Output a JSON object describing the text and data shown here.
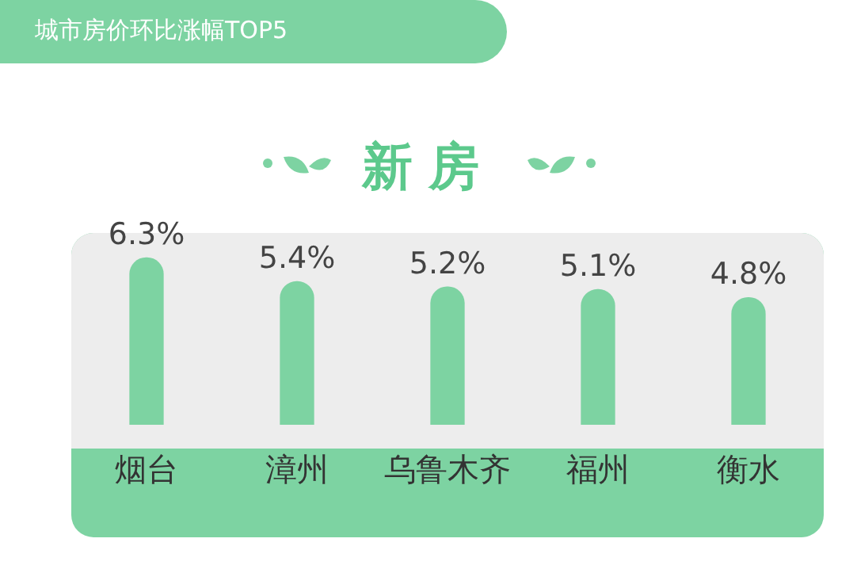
{
  "chart_data": {
    "type": "bar",
    "title": "城市房价环比涨幅TOP5",
    "subtitle": "新房",
    "categories": [
      "烟台",
      "漳州",
      "乌鲁木齐",
      "福州",
      "衡水"
    ],
    "values": [
      6.3,
      5.4,
      5.2,
      5.1,
      4.8
    ],
    "value_labels": [
      "6.3%",
      "5.4%",
      "5.2%",
      "5.1%",
      "4.8%"
    ],
    "color": "#7dd3a2",
    "grid": false,
    "legend": false
  }
}
